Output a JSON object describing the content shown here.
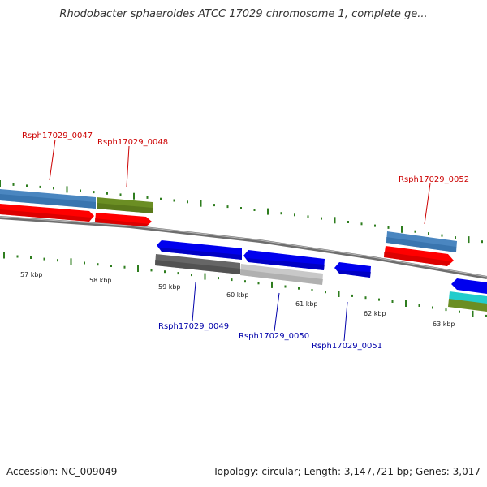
{
  "title": "Rhodobacter sphaeroides ATCC 17029 chromosome 1, complete ge...",
  "footer": {
    "accession": "Accession: NC_009049",
    "summary": "Topology: circular; Length: 3,147,721 bp; Genes: 3,017"
  },
  "colors": {
    "forward_label": "#cc0000",
    "reverse_label": "#0000aa",
    "tick": "#2e7d1e",
    "backbone": "#8a8a8a",
    "red_gene": "#ff0000",
    "blue_gene": "#0000ee",
    "steelblue_gene": "#4a86c0",
    "olive_gene": "#6b8e23",
    "dark_grey_gene": "#666666",
    "light_grey_gene": "#c8c8c8",
    "cyan_gene": "#22cccc"
  },
  "kbp_labels": [
    "57 kbp",
    "58 kbp",
    "59 kbp",
    "60 kbp",
    "61 kbp",
    "62 kbp",
    "63 kbp"
  ],
  "forward_genes": [
    "Rsph17029_0047",
    "Rsph17029_0048",
    "Rsph17029_0052"
  ],
  "reverse_genes": [
    "Rsph17029_0049",
    "Rsph17029_0050",
    "Rsph17029_0051"
  ]
}
